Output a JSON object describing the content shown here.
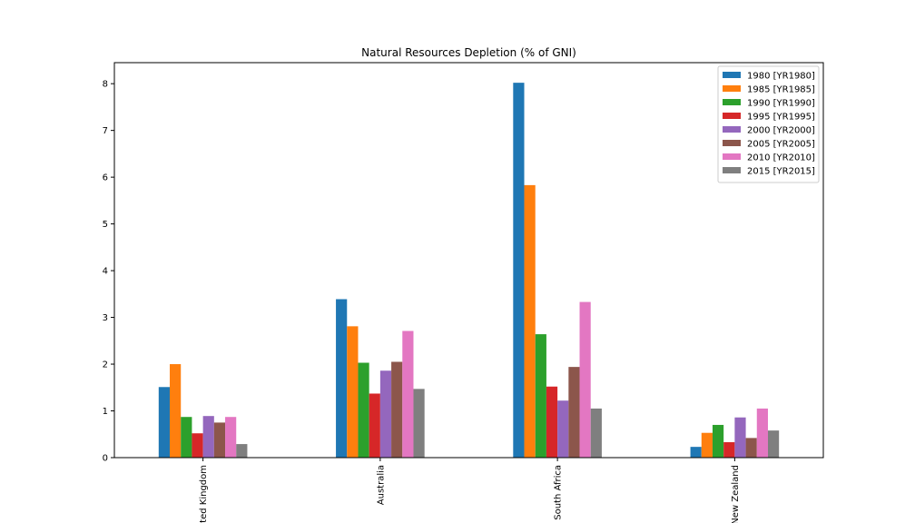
{
  "chart_data": {
    "type": "bar",
    "title": "Natural Resources Depletion (% of GNI)",
    "xlabel": "",
    "ylabel": "",
    "categories": [
      "United Kingdom",
      "Australia",
      "South Africa",
      "New Zealand"
    ],
    "ylim": [
      0,
      8.45
    ],
    "yticks": [
      0,
      1,
      2,
      3,
      4,
      5,
      6,
      7,
      8
    ],
    "grid": false,
    "legend_position": "top-right",
    "series": [
      {
        "name": "1980 [YR1980]",
        "color": "#1f77b4",
        "values": [
          1.51,
          3.39,
          8.02,
          0.23
        ]
      },
      {
        "name": "1985 [YR1985]",
        "color": "#ff7f0e",
        "values": [
          2.0,
          2.81,
          5.83,
          0.53
        ]
      },
      {
        "name": "1990 [YR1990]",
        "color": "#2ca02c",
        "values": [
          0.87,
          2.03,
          2.64,
          0.7
        ]
      },
      {
        "name": "1995 [YR1995]",
        "color": "#d62728",
        "values": [
          0.52,
          1.37,
          1.52,
          0.33
        ]
      },
      {
        "name": "2000 [YR2000]",
        "color": "#9467bd",
        "values": [
          0.89,
          1.86,
          1.22,
          0.86
        ]
      },
      {
        "name": "2005 [YR2005]",
        "color": "#8c564b",
        "values": [
          0.75,
          2.05,
          1.94,
          0.42
        ]
      },
      {
        "name": "2010 [YR2010]",
        "color": "#e377c2",
        "values": [
          0.87,
          2.71,
          3.33,
          1.05
        ]
      },
      {
        "name": "2015 [YR2015]",
        "color": "#7f7f7f",
        "values": [
          0.29,
          1.47,
          1.05,
          0.58
        ]
      }
    ]
  }
}
